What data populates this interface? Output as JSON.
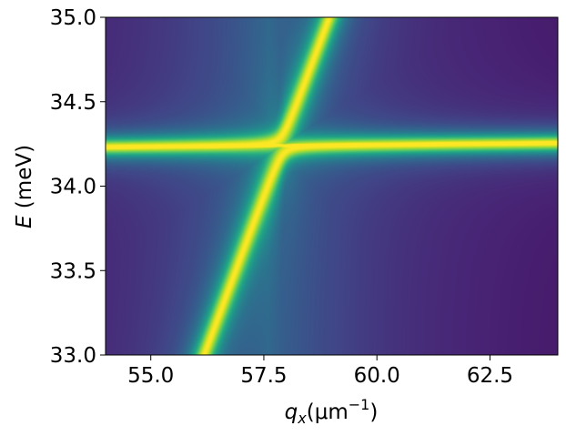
{
  "chart_data": {
    "type": "heatmap",
    "title": "",
    "colormap": "viridis",
    "xlim": [
      54.0,
      64.0
    ],
    "ylim": [
      33.0,
      35.0
    ],
    "xticks": [
      55.0,
      57.5,
      60.0,
      62.5
    ],
    "xtick_labels": [
      "55.0",
      "57.5",
      "60.0",
      "62.5"
    ],
    "yticks": [
      33.0,
      33.5,
      34.0,
      34.5,
      35.0
    ],
    "ytick_labels": [
      "33.0",
      "33.5",
      "34.0",
      "34.5",
      "35.0"
    ],
    "xlabel": {
      "base": "q",
      "sub": "x",
      "mid": "(μm",
      "sup": "−1",
      "end": ")"
    },
    "ylabel": {
      "italic": "E",
      "rest": " (meV)"
    },
    "features": {
      "flat_branch_energy_meV": 34.24,
      "flat_branch_slope_meV_per_um_inv": 0.0025,
      "dispersive_branch": [
        {
          "qx": 55.7,
          "E": 33.0
        },
        {
          "qx": 56.4,
          "E": 33.5
        },
        {
          "qx": 57.1,
          "E": 34.0
        },
        {
          "qx": 57.9,
          "E": 34.24
        },
        {
          "qx": 58.3,
          "E": 34.5
        },
        {
          "qx": 59.0,
          "E": 35.0
        }
      ],
      "anticrossing_center": {
        "qx": 57.9,
        "E": 34.24
      }
    }
  }
}
